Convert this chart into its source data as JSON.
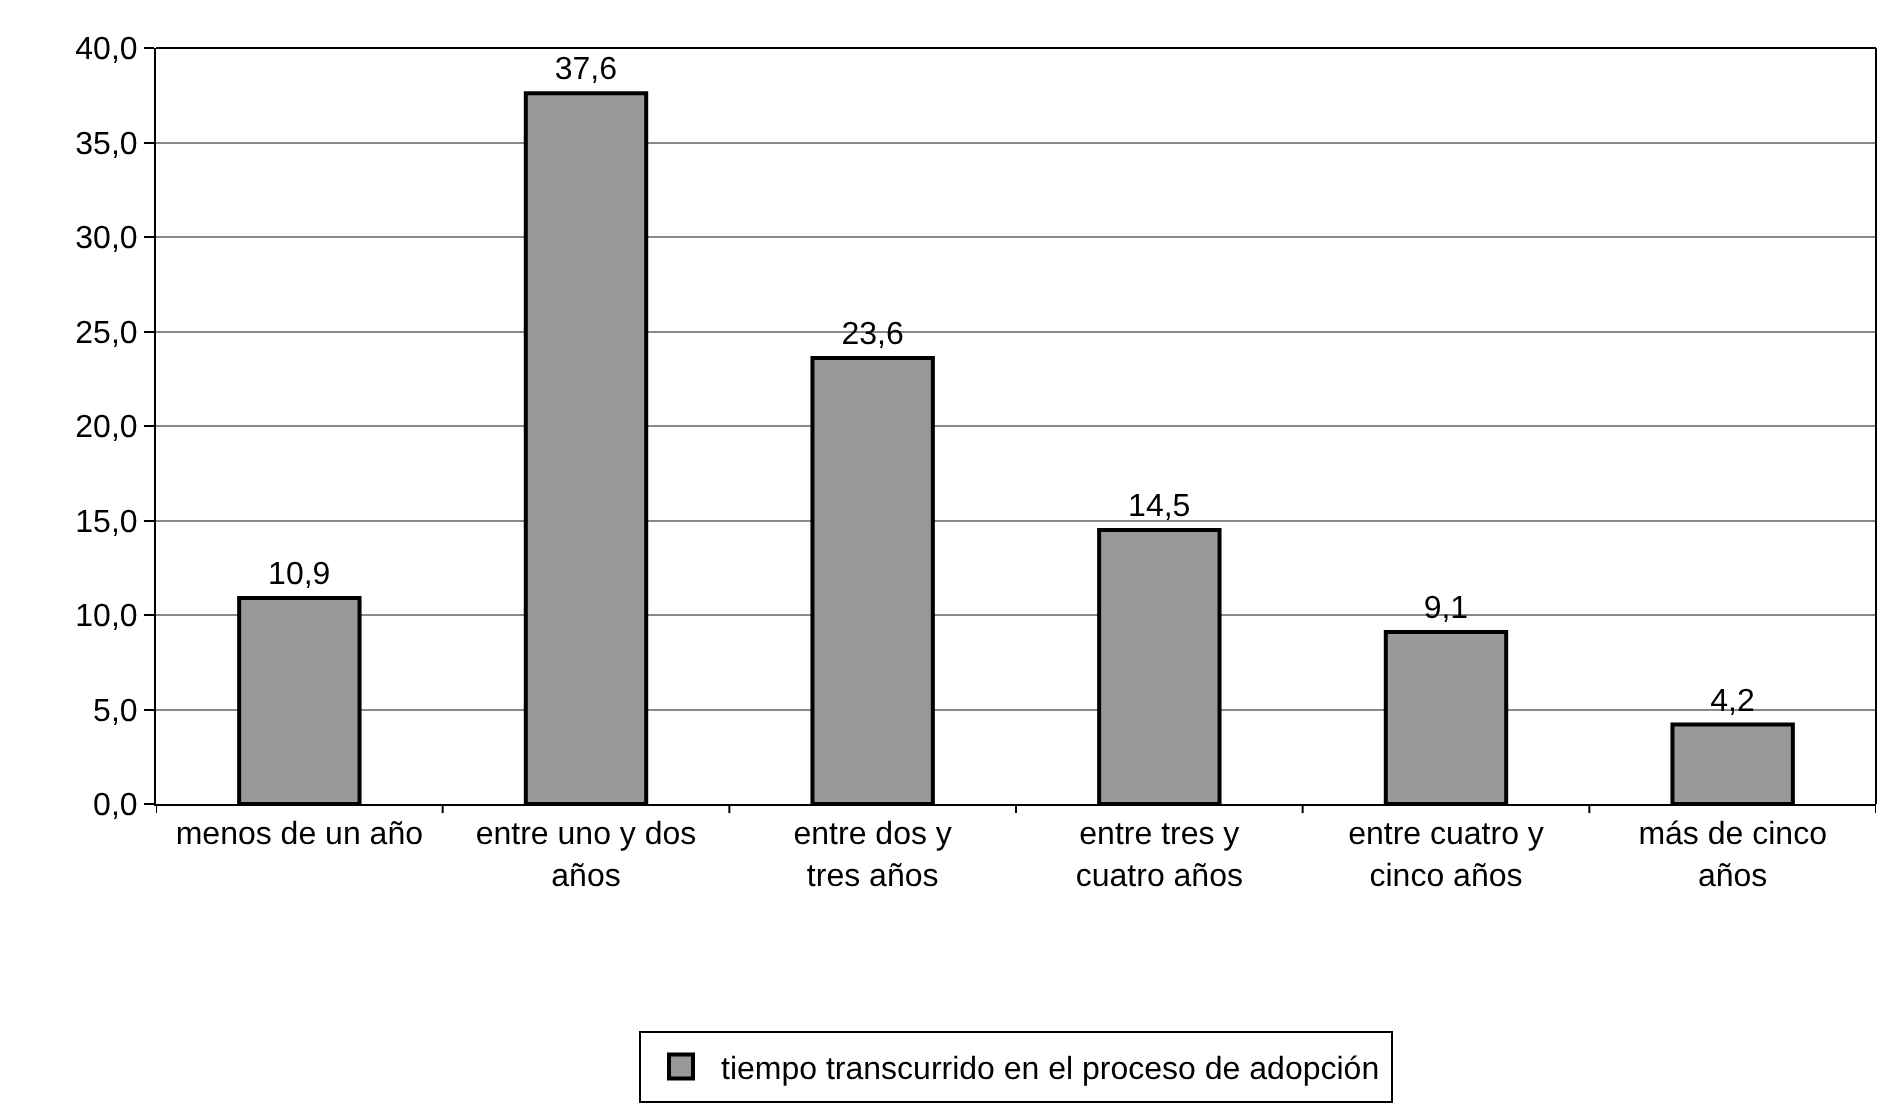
{
  "chart_data": {
    "type": "bar",
    "categories": [
      "menos de un año",
      "entre uno y dos años",
      "entre dos y tres años",
      "entre tres y cuatro años",
      "entre cuatro y cinco años",
      "más de cinco años"
    ],
    "series": [
      {
        "name": "tiempo transcurrido en el proceso de adopción",
        "color": "#999999",
        "values": [
          10.9,
          37.6,
          23.6,
          14.5,
          9.1,
          4.2
        ],
        "value_labels": [
          "10,9",
          "37,6",
          "23,6",
          "14,5",
          "9,1",
          "4,2"
        ]
      }
    ],
    "ylim": [
      0,
      40
    ],
    "yticks": [
      {
        "value": 0,
        "label": "0,0"
      },
      {
        "value": 5,
        "label": "5,0"
      },
      {
        "value": 10,
        "label": "10,0"
      },
      {
        "value": 15,
        "label": "15,0"
      },
      {
        "value": 20,
        "label": "20,0"
      },
      {
        "value": 25,
        "label": "25,0"
      },
      {
        "value": 30,
        "label": "30,0"
      },
      {
        "value": 35,
        "label": "35,0"
      },
      {
        "value": 40,
        "label": "40,0"
      }
    ],
    "grid": "y",
    "legend": "bottom"
  }
}
